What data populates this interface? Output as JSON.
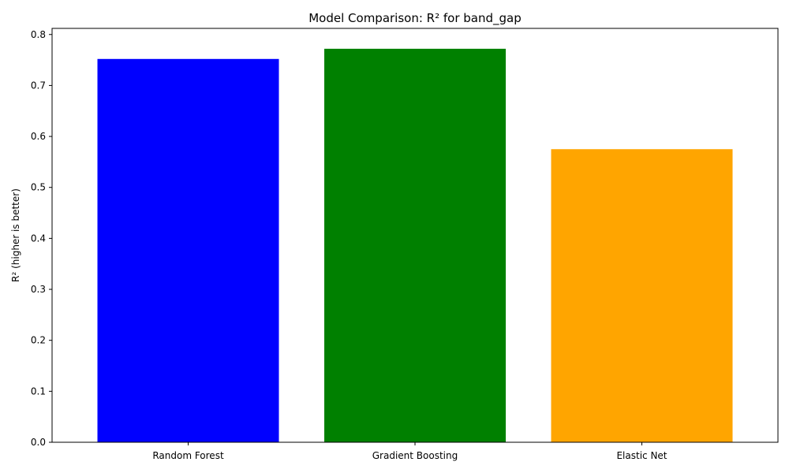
{
  "chart_data": {
    "type": "bar",
    "title": "Model Comparison: R² for band_gap",
    "xlabel": "",
    "ylabel": "R² (higher is better)",
    "categories": [
      "Random Forest",
      "Gradient Boosting",
      "Elastic Net"
    ],
    "values": [
      0.752,
      0.772,
      0.575
    ],
    "colors": [
      "#0000ff",
      "#008000",
      "#ffa500"
    ],
    "ylim": [
      0,
      0.812
    ],
    "yticks": [
      0.0,
      0.1,
      0.2,
      0.3,
      0.4,
      0.5,
      0.6,
      0.7,
      0.8
    ],
    "ytick_labels": [
      "0.0",
      "0.1",
      "0.2",
      "0.3",
      "0.4",
      "0.5",
      "0.6",
      "0.7",
      "0.8"
    ],
    "grid": false,
    "legend": "none"
  }
}
